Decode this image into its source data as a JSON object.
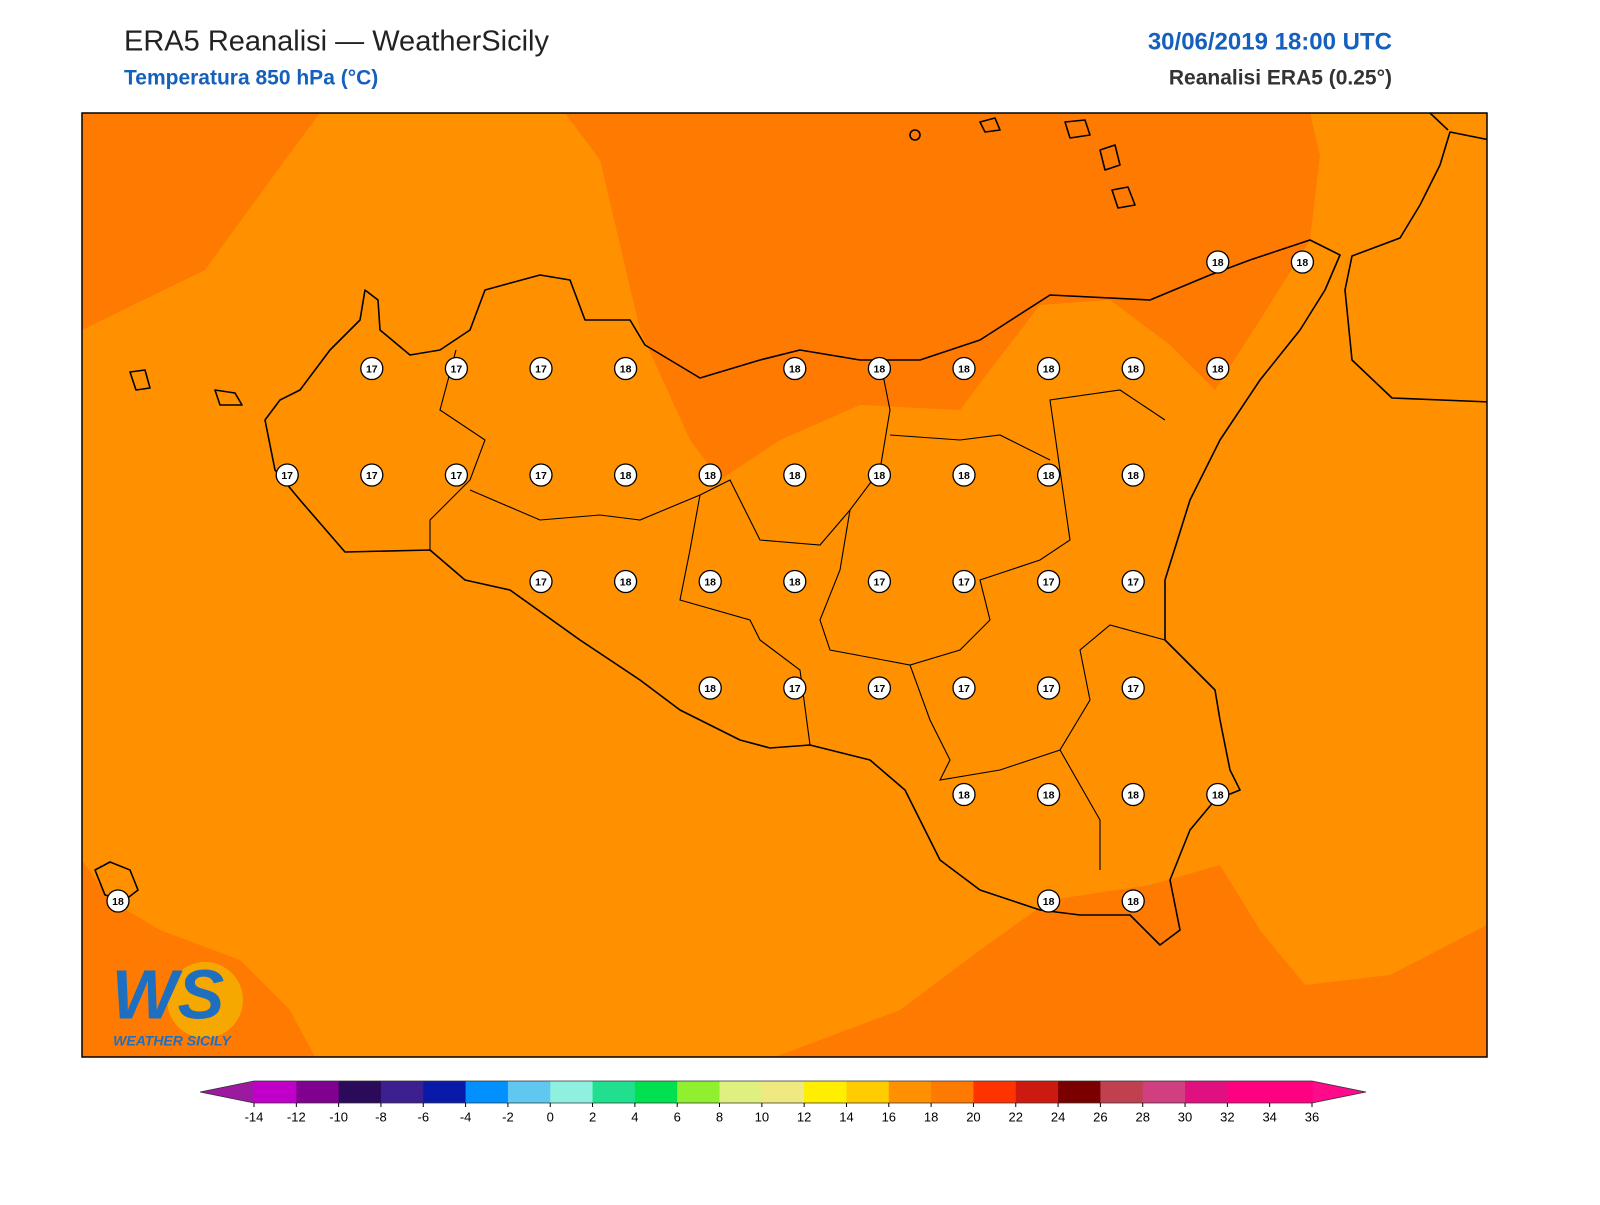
{
  "header": {
    "title": "ERA5 Reanalisi — WeatherSicily",
    "subtitle": "Temperatura 850 hPa (°C)",
    "date": "30/06/2019 18:00 UTC",
    "model": "Reanalisi ERA5 (0.25°)"
  },
  "map": {
    "station_values": [
      18,
      18,
      17,
      17,
      17,
      18,
      18,
      18,
      18,
      18,
      18,
      18,
      17,
      17,
      17,
      17,
      18,
      18,
      18,
      18,
      18,
      18,
      18,
      17,
      18,
      18,
      18,
      17,
      17,
      17,
      17,
      18,
      17,
      17,
      17,
      17,
      17,
      18,
      18,
      18,
      18,
      18,
      18,
      18
    ]
  },
  "colorbar": {
    "ticks": [
      -14,
      -12,
      -10,
      -8,
      -6,
      -4,
      -2,
      0,
      2,
      4,
      6,
      8,
      10,
      12,
      14,
      16,
      18,
      20,
      22,
      24,
      26,
      28,
      30,
      32,
      34,
      36
    ],
    "colors": [
      "#c000c8",
      "#800090",
      "#2c0a5a",
      "#3c2090",
      "#0a1aa8",
      "#0090ff",
      "#60c8f0",
      "#90f0e0",
      "#20e090",
      "#00e050",
      "#90f030",
      "#e0f080",
      "#f0e880",
      "#ffee00",
      "#ffcc00",
      "#ff9100",
      "#ff7a00",
      "#ff3300",
      "#cc1a10",
      "#7a0000",
      "#c04050",
      "#d04080",
      "#e01080",
      "#ff0080",
      "#ff0080"
    ],
    "under_color": "#9b1aa0",
    "over_color": "#ff0a8a"
  },
  "logo": {
    "text": "WS",
    "caption": "WEATHER SICILY"
  }
}
